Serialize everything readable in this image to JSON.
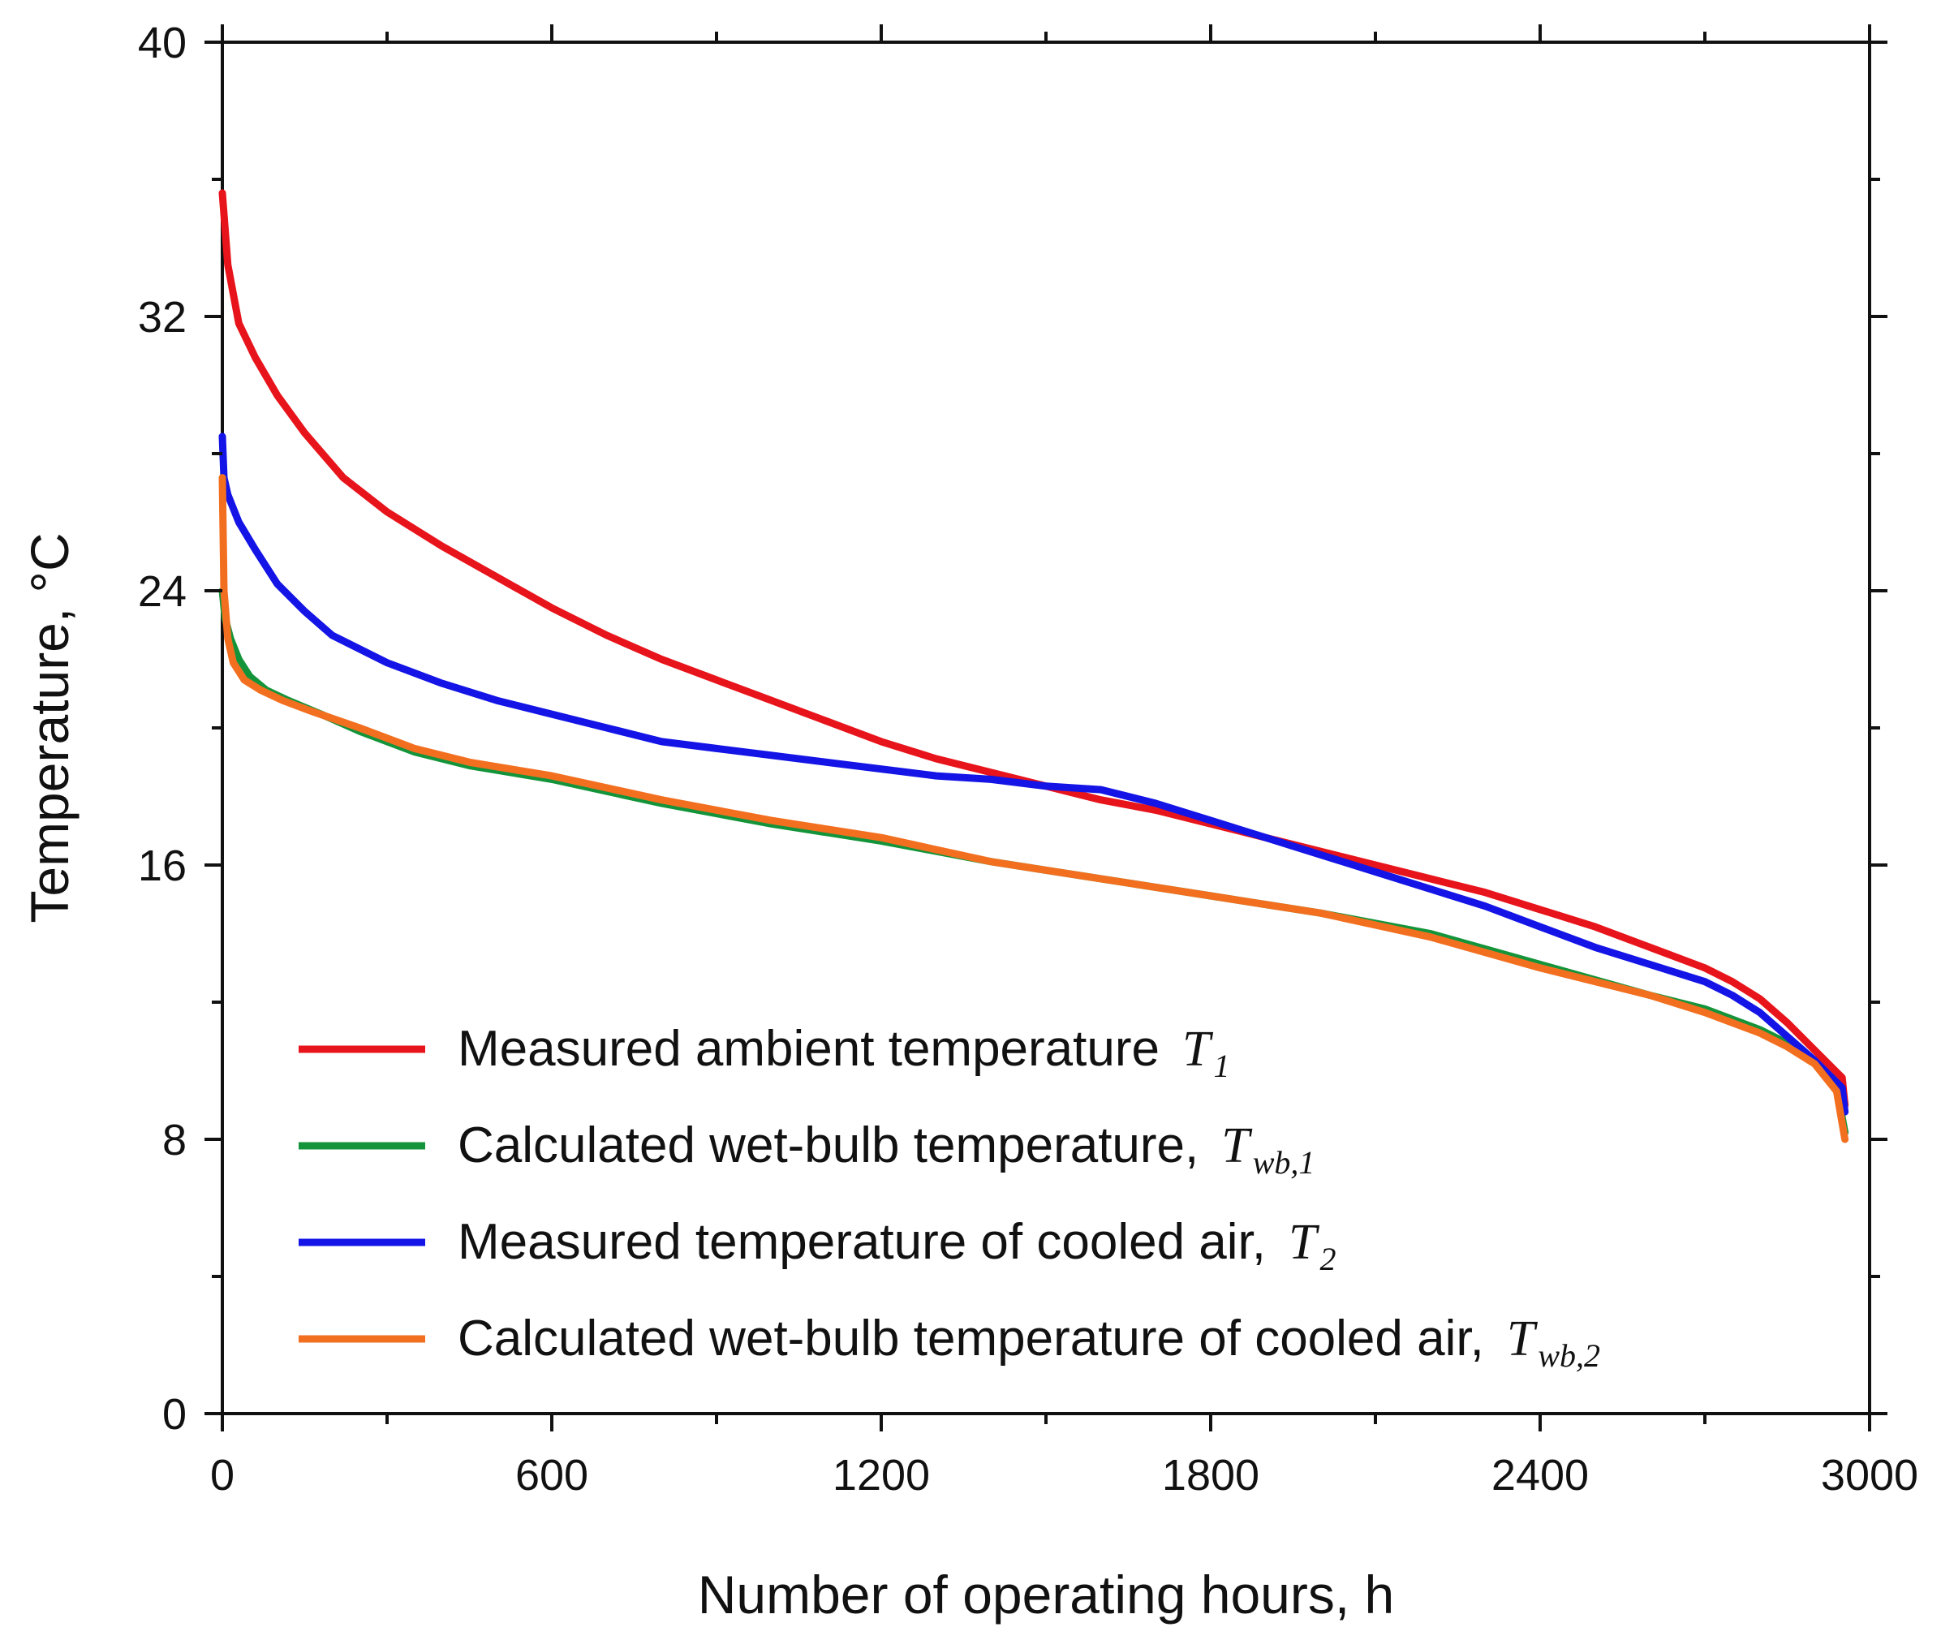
{
  "chart_data": {
    "type": "line",
    "xlabel": "Number of operating hours, h",
    "ylabel": "Temperature, °C",
    "xlim": [
      0,
      3000
    ],
    "ylim": [
      0,
      40
    ],
    "xticks": [
      0,
      600,
      1200,
      1800,
      2400,
      3000
    ],
    "yticks": [
      0,
      8,
      16,
      24,
      32,
      40
    ],
    "xtick_labels": [
      "0",
      "600",
      "1200",
      "1800",
      "2400",
      "3000"
    ],
    "ytick_labels": [
      "0",
      "8",
      "16",
      "24",
      "32",
      "40"
    ],
    "legend_position": "bottom-left",
    "series": [
      {
        "name": "Measured ambient temperature",
        "symbol": "T",
        "subscript": "1",
        "color": "#e8141b",
        "x": [
          0,
          10,
          30,
          60,
          100,
          150,
          220,
          300,
          400,
          500,
          600,
          700,
          800,
          900,
          1000,
          1100,
          1200,
          1300,
          1400,
          1500,
          1600,
          1700,
          1800,
          1900,
          2000,
          2100,
          2200,
          2300,
          2400,
          2500,
          2600,
          2700,
          2750,
          2800,
          2850,
          2900,
          2950,
          2955
        ],
        "values": [
          35.6,
          33.5,
          31.8,
          30.8,
          29.7,
          28.6,
          27.3,
          26.3,
          25.3,
          24.4,
          23.5,
          22.7,
          22.0,
          21.4,
          20.8,
          20.2,
          19.6,
          19.1,
          18.7,
          18.3,
          17.9,
          17.6,
          17.2,
          16.8,
          16.4,
          16.0,
          15.6,
          15.2,
          14.7,
          14.2,
          13.6,
          13.0,
          12.6,
          12.1,
          11.4,
          10.6,
          9.8,
          9.0
        ]
      },
      {
        "name": "Calculated wet-bulb temperature,",
        "symbol": "T",
        "subscript": "wb,1",
        "color": "#14943a",
        "x": [
          0,
          5,
          15,
          30,
          50,
          80,
          120,
          180,
          250,
          350,
          450,
          600,
          800,
          1000,
          1200,
          1400,
          1600,
          1800,
          2000,
          2200,
          2400,
          2600,
          2700,
          2800,
          2850,
          2900,
          2940,
          2955
        ],
        "values": [
          24.0,
          23.2,
          22.6,
          22.0,
          21.5,
          21.1,
          20.8,
          20.4,
          19.9,
          19.3,
          18.9,
          18.5,
          17.8,
          17.2,
          16.7,
          16.1,
          15.6,
          15.1,
          14.6,
          14.0,
          13.1,
          12.2,
          11.8,
          11.2,
          10.8,
          10.3,
          9.5,
          8.2
        ]
      },
      {
        "name": "Measured temperature of cooled air,",
        "symbol": "T",
        "subscript": "2",
        "color": "#1414e6",
        "x": [
          0,
          3,
          10,
          30,
          60,
          100,
          150,
          200,
          300,
          400,
          500,
          600,
          700,
          800,
          900,
          1000,
          1100,
          1200,
          1300,
          1400,
          1500,
          1600,
          1700,
          1800,
          1900,
          2000,
          2100,
          2200,
          2300,
          2400,
          2500,
          2600,
          2700,
          2750,
          2800,
          2850,
          2900,
          2950,
          2955
        ],
        "values": [
          28.5,
          27.3,
          26.8,
          26.0,
          25.2,
          24.2,
          23.4,
          22.7,
          21.9,
          21.3,
          20.8,
          20.4,
          20.0,
          19.6,
          19.4,
          19.2,
          19.0,
          18.8,
          18.6,
          18.5,
          18.3,
          18.2,
          17.8,
          17.3,
          16.8,
          16.3,
          15.8,
          15.3,
          14.8,
          14.2,
          13.6,
          13.1,
          12.6,
          12.2,
          11.7,
          11.0,
          10.3,
          9.5,
          8.8
        ]
      },
      {
        "name": "Calculated wet-bulb temperature of cooled air,",
        "symbol": "T",
        "subscript": "wb,2",
        "color": "#f36f20",
        "x": [
          0,
          3,
          10,
          20,
          40,
          70,
          110,
          160,
          250,
          350,
          450,
          600,
          800,
          1000,
          1200,
          1400,
          1600,
          1800,
          2000,
          2200,
          2400,
          2600,
          2700,
          2800,
          2850,
          2900,
          2940,
          2955
        ],
        "values": [
          27.3,
          24.0,
          22.6,
          21.9,
          21.4,
          21.1,
          20.8,
          20.5,
          20.0,
          19.4,
          19.0,
          18.6,
          17.9,
          17.3,
          16.8,
          16.1,
          15.6,
          15.1,
          14.6,
          13.9,
          13.0,
          12.2,
          11.7,
          11.1,
          10.7,
          10.2,
          9.4,
          8.0
        ]
      }
    ]
  }
}
